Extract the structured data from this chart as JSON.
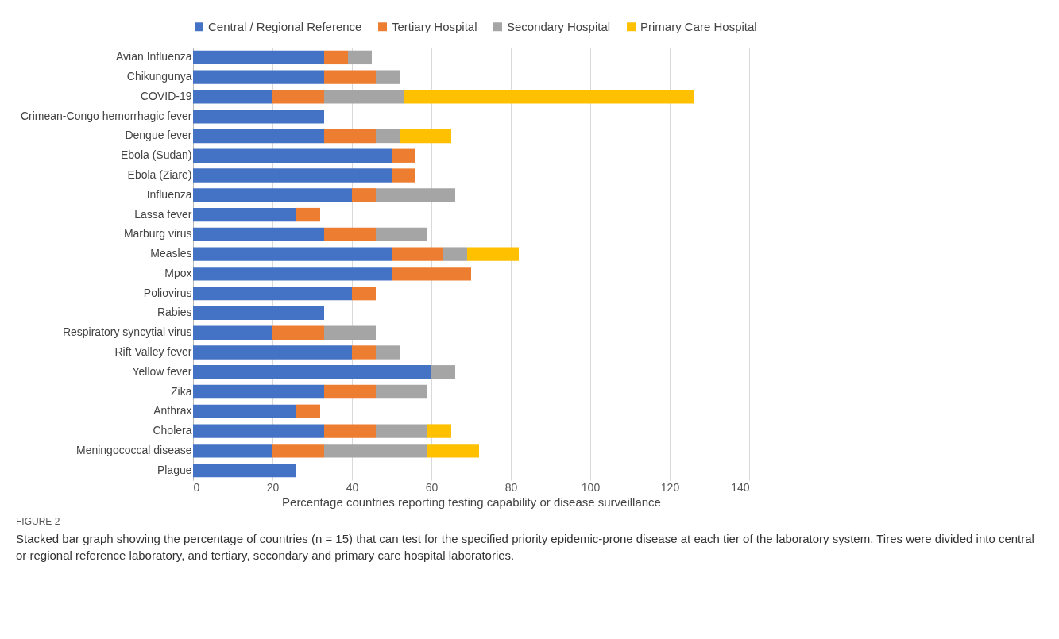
{
  "chart_data": {
    "type": "bar",
    "orientation": "horizontal",
    "stacked": true,
    "xlabel": "Percentage countries reporting testing capability or disease surveillance",
    "categories": [
      "Avian Influenza",
      "Chikungunya",
      "COVID-19",
      "Crimean-Congo hemorrhagic fever",
      "Dengue fever",
      "Ebola (Sudan)",
      "Ebola (Ziare)",
      "Influenza",
      "Lassa fever",
      "Marburg virus",
      "Measles",
      "Mpox",
      "Poliovirus",
      "Rabies",
      "Respiratory syncytial virus",
      "Rift Valley fever",
      "Yellow fever",
      "Zika",
      "Anthrax",
      "Cholera",
      "Meningococcal disease",
      "Plague"
    ],
    "series": [
      {
        "name": "Central / Regional Reference",
        "color": "#4472c4",
        "values": [
          33,
          33,
          20,
          33,
          33,
          50,
          50,
          40,
          26,
          33,
          50,
          50,
          40,
          33,
          20,
          40,
          60,
          33,
          26,
          33,
          20,
          26
        ]
      },
      {
        "name": "Tertiary Hospital",
        "color": "#ed7d31",
        "values": [
          6,
          13,
          13,
          null,
          13,
          6,
          6,
          6,
          6,
          13,
          13,
          20,
          6,
          null,
          13,
          6,
          null,
          13,
          6,
          13,
          13,
          null
        ]
      },
      {
        "name": "Secondary Hospital",
        "color": "#a5a5a5",
        "values": [
          6,
          6,
          20,
          null,
          6,
          null,
          null,
          20,
          null,
          13,
          6,
          null,
          null,
          null,
          13,
          6,
          6,
          13,
          null,
          13,
          26,
          null
        ]
      },
      {
        "name": "Primary Care Hospital",
        "color": "#ffc000",
        "values": [
          null,
          null,
          73,
          null,
          13,
          null,
          null,
          null,
          null,
          null,
          13,
          null,
          null,
          null,
          null,
          null,
          null,
          null,
          null,
          6,
          13,
          null
        ]
      }
    ],
    "xlim": [
      0,
      140
    ],
    "xticks": [
      0,
      20,
      40,
      60,
      80,
      100,
      120,
      140
    ],
    "grid": "x",
    "legend": "top",
    "annotations": [
      "FIGURE 2",
      "Stacked bar graph showing the percentage of countries (n = 15) that can test for the specified priority epidemic-prone disease at each tier of the laboratory system. Tires were divided into central or regional reference laboratory, and tertiary, secondary and primary care hospital laboratories."
    ]
  }
}
